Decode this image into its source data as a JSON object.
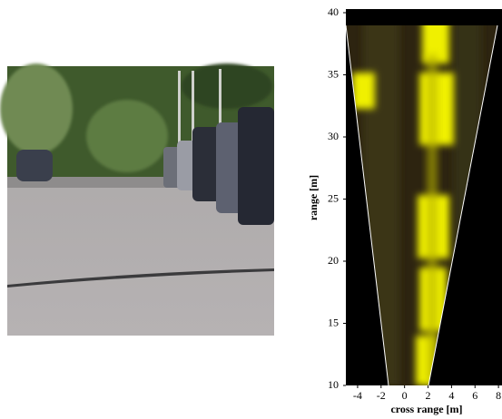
{
  "chart_data": {
    "type": "radar-image",
    "xlabel": "cross range [m]",
    "ylabel": "range [m]",
    "xlim": [
      -5,
      8.3
    ],
    "ylim": [
      10,
      40
    ],
    "xticks": [
      -4,
      -2,
      0,
      2,
      4,
      6,
      8
    ],
    "yticks": [
      10,
      15,
      20,
      25,
      30,
      35,
      40
    ]
  }
}
